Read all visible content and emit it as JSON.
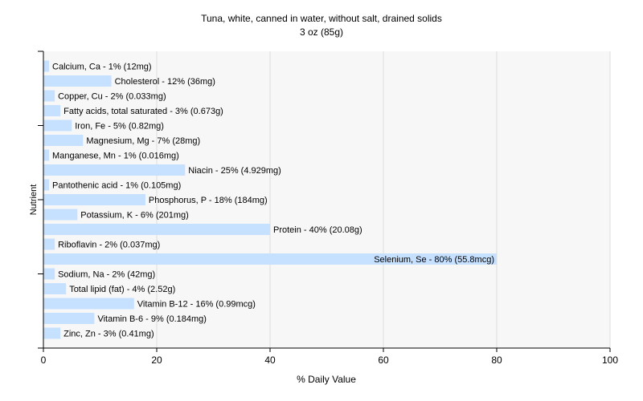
{
  "chart_data": {
    "type": "bar",
    "orientation": "horizontal",
    "title": "Tuna, white, canned in water, without salt, drained solids",
    "subtitle": "3 oz (85g)",
    "xlabel": "% Daily Value",
    "ylabel": "Nutrient",
    "xlim": [
      0,
      100
    ],
    "xticks": [
      0,
      20,
      40,
      60,
      80,
      100
    ],
    "grid": true,
    "bar_color": "#c6e0ff",
    "background": "#f7f7f7",
    "categories": [
      "Calcium, Ca",
      "Cholesterol",
      "Copper, Cu",
      "Fatty acids, total saturated",
      "Iron, Fe",
      "Magnesium, Mg",
      "Manganese, Mn",
      "Niacin",
      "Pantothenic acid",
      "Phosphorus, P",
      "Potassium, K",
      "Protein",
      "Riboflavin",
      "Selenium, Se",
      "Sodium, Na",
      "Total lipid (fat)",
      "Vitamin B-12",
      "Vitamin B-6",
      "Zinc, Zn"
    ],
    "values": [
      1,
      12,
      2,
      3,
      5,
      7,
      1,
      25,
      1,
      18,
      6,
      40,
      2,
      80,
      2,
      4,
      16,
      9,
      3
    ],
    "labels": [
      "Calcium, Ca - 1% (12mg)",
      "Cholesterol - 12% (36mg)",
      "Copper, Cu - 2% (0.033mg)",
      "Fatty acids, total saturated - 3% (0.673g)",
      "Iron, Fe - 5% (0.82mg)",
      "Magnesium, Mg - 7% (28mg)",
      "Manganese, Mn - 1% (0.016mg)",
      "Niacin - 25% (4.929mg)",
      "Pantothenic acid - 1% (0.105mg)",
      "Phosphorus, P - 18% (184mg)",
      "Potassium, K - 6% (201mg)",
      "Protein - 40% (20.08g)",
      "Riboflavin - 2% (0.037mg)",
      "Selenium, Se - 80% (55.8mcg)",
      "Sodium, Na - 2% (42mg)",
      "Total lipid (fat) - 4% (2.52g)",
      "Vitamin B-12 - 16% (0.99mcg)",
      "Vitamin B-6 - 9% (0.184mg)",
      "Zinc, Zn - 3% (0.41mg)"
    ]
  }
}
